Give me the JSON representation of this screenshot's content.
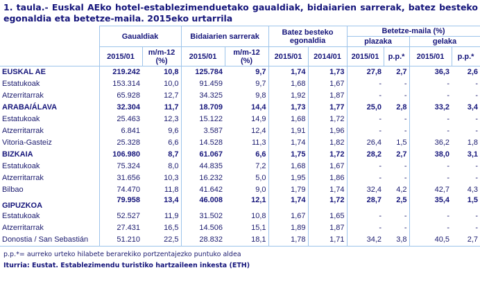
{
  "title": "1. taula.- Euskal AEko hotel-establezimenduetako gaualdiak, bidaiarien sarrerak, batez besteko egonaldia eta betetze-maila. 2015eko urtarrila",
  "headers": {
    "gaualdiak": "Gaualdiak",
    "sarrerak": "Bidaiarien sarrerak",
    "egonaldia": "Batez besteko egonaldia",
    "betetze": "Betetze-maila (%)",
    "plazaka": "plazaka",
    "gelaka": "gelaka",
    "sub": [
      "2015/01",
      "m/m-12 (%)",
      "2015/01",
      "m/m-12 (%)",
      "2015/01",
      "2014/01",
      "2015/01",
      "p.p.*",
      "2015/01",
      "p.p.*"
    ]
  },
  "rows": [
    {
      "label": "EUSKAL AE",
      "main": true,
      "v": [
        "219.242",
        "10,8",
        "125.784",
        "9,7",
        "1,74",
        "1,73",
        "27,8",
        "2,7",
        "36,3",
        "2,6"
      ]
    },
    {
      "label": "Estatukoak",
      "v": [
        "153.314",
        "10,0",
        "91.459",
        "9,7",
        "1,68",
        "1,67",
        "-",
        "-",
        "-",
        "-"
      ]
    },
    {
      "label": "Atzerritarrak",
      "v": [
        "65.928",
        "12,7",
        "34.325",
        "9,8",
        "1,92",
        "1,87",
        "-",
        "-",
        "-",
        "-"
      ]
    },
    {
      "label": "ARABA/ÁLAVA",
      "main": true,
      "v": [
        "32.304",
        "11,7",
        "18.709",
        "14,4",
        "1,73",
        "1,77",
        "25,0",
        "2,8",
        "33,2",
        "3,4"
      ]
    },
    {
      "label": "Estatukoak",
      "v": [
        "25.463",
        "12,3",
        "15.122",
        "14,9",
        "1,68",
        "1,72",
        "-",
        "-",
        "-",
        "-"
      ]
    },
    {
      "label": "Atzerritarrak",
      "v": [
        "6.841",
        "9,6",
        "3.587",
        "12,4",
        "1,91",
        "1,96",
        "-",
        "-",
        "-",
        "-"
      ]
    },
    {
      "label": "Vitoria-Gasteiz",
      "v": [
        "25.328",
        "6,6",
        "14.528",
        "11,3",
        "1,74",
        "1,82",
        "26,4",
        "1,5",
        "36,2",
        "1,8"
      ]
    },
    {
      "label": "BIZKAIA",
      "main": true,
      "v": [
        "106.980",
        "8,7",
        "61.067",
        "6,6",
        "1,75",
        "1,72",
        "28,2",
        "2,7",
        "38,0",
        "3,1"
      ]
    },
    {
      "label": "Estatukoak",
      "v": [
        "75.324",
        "8,0",
        "44.835",
        "7,2",
        "1,68",
        "1,67",
        "-",
        "-",
        "-",
        "-"
      ]
    },
    {
      "label": "Atzerritarrak",
      "v": [
        "31.656",
        "10,3",
        "16.232",
        "5,0",
        "1,95",
        "1,86",
        "-",
        "-",
        "-",
        "-"
      ]
    },
    {
      "label": "Bilbao",
      "v": [
        "74.470",
        "11,8",
        "41.642",
        "9,0",
        "1,79",
        "1,74",
        "32,4",
        "4,2",
        "42,7",
        "4,3"
      ]
    },
    {
      "label": "GIPUZKOA",
      "main": true,
      "v": [
        "79.958",
        "13,4",
        "46.008",
        "12,1",
        "1,74",
        "1,72",
        "28,7",
        "2,5",
        "35,4",
        "1,5"
      ]
    },
    {
      "label": "Estatukoak",
      "v": [
        "52.527",
        "11,9",
        "31.502",
        "10,8",
        "1,67",
        "1,65",
        "-",
        "-",
        "-",
        "-"
      ]
    },
    {
      "label": "Atzerritarrak",
      "v": [
        "27.431",
        "16,5",
        "14.506",
        "15,1",
        "1,89",
        "1,87",
        "-",
        "-",
        "-",
        "-"
      ]
    },
    {
      "label": "Donostia / San Sebastián",
      "v": [
        "51.210",
        "22,5",
        "28.832",
        "18,1",
        "1,78",
        "1,71",
        "34,2",
        "3,8",
        "40,5",
        "2,7"
      ]
    }
  ],
  "footnote": "p.p.*= aurreko urteko hilabete berarekiko portzentajezko puntuko aldea",
  "source": "Iturria: Eustat. Establezimendu turistiko hartzaileen inkesta (ETH)",
  "colors": {
    "text": "#14147a",
    "border": "#9cc3ea"
  }
}
